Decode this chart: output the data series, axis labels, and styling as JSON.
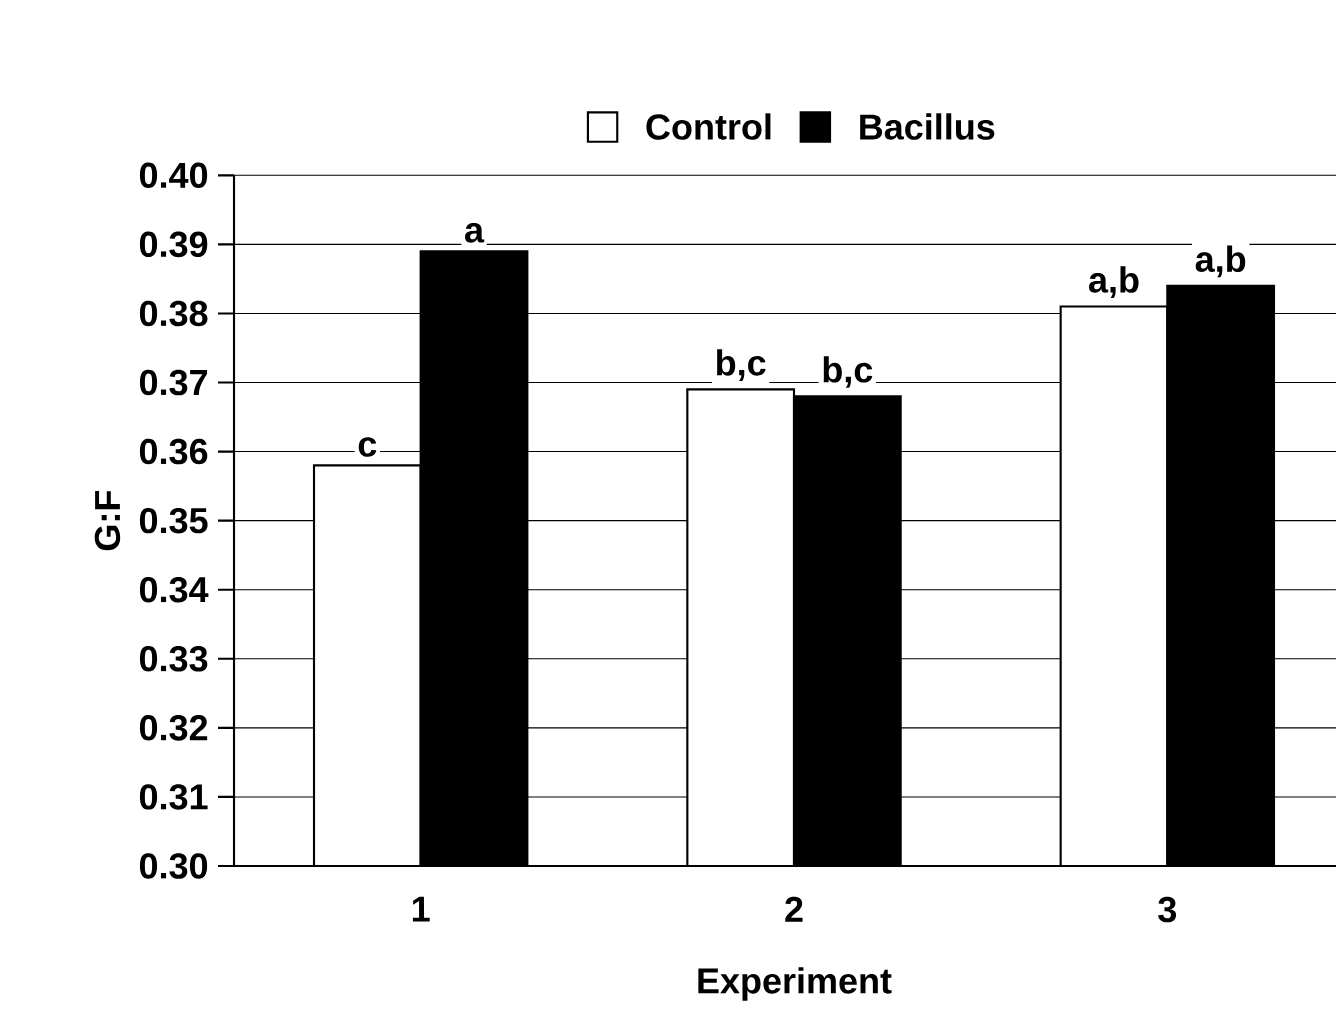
{
  "chart_data": {
    "type": "bar",
    "xlabel": "Experiment",
    "ylabel": "G:F",
    "categories": [
      "1",
      "2",
      "3"
    ],
    "series": [
      {
        "name": "Control",
        "color": "#ffffff",
        "values": [
          0.358,
          0.369,
          0.381
        ]
      },
      {
        "name": "Bacillus",
        "color": "#000000",
        "values": [
          0.389,
          0.368,
          0.384
        ]
      }
    ],
    "ylim": [
      0.3,
      0.4
    ],
    "yticks": [
      {
        "value": 0.3,
        "label": "0.30"
      },
      0.31,
      0.32,
      0.33,
      0.34,
      0.35,
      0.36,
      0.37,
      0.38,
      0.39,
      {
        "value": 0.4,
        "label": "0.40"
      }
    ],
    "grid": "y",
    "legend": "top",
    "annotations": [
      {
        "text": "c",
        "x": "1",
        "y": 0.358
      },
      {
        "text": "a",
        "x": "1",
        "y": 0.389
      },
      {
        "text": "b,c",
        "x": "2",
        "y": 0.369
      },
      {
        "text": "b,c",
        "x": "2",
        "y": 0.368
      },
      {
        "text": "a,b",
        "x": "3",
        "y": 0.381
      },
      {
        "text": "a,b",
        "x": "3",
        "y": 0.384
      }
    ]
  }
}
